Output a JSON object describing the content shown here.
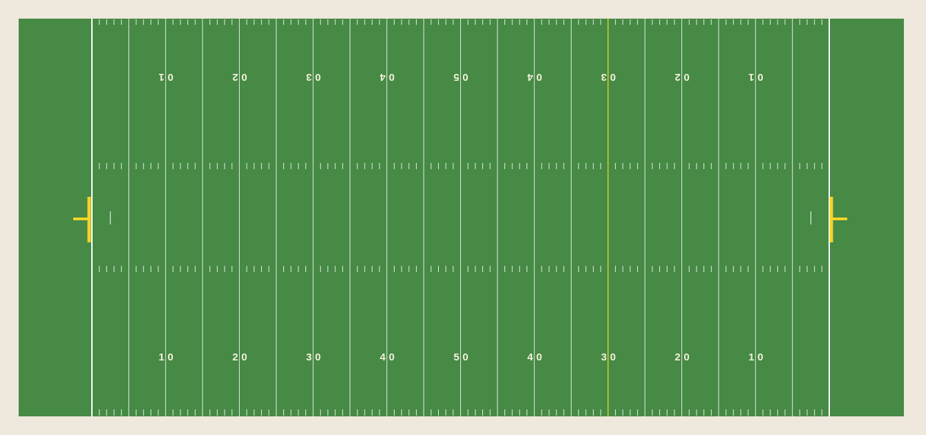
{
  "colors": {
    "background": "#efe8dd",
    "turf": "#468a45",
    "line": "#ffffff",
    "goalpost": "#f5d328",
    "first_down_line": "#c8cf2a",
    "number_bottom": "#f4f1dc",
    "number_top": "#f4f1dc"
  },
  "field": {
    "yard_numbers_bottom": [
      "10",
      "20",
      "30",
      "40",
      "50",
      "40",
      "30",
      "20",
      "10"
    ],
    "yard_numbers_top": [
      "10",
      "20",
      "30",
      "40",
      "50",
      "40",
      "30",
      "20",
      "10"
    ],
    "first_down_yard": 70,
    "total_yards": 100,
    "endzone_yards": 10
  },
  "icons": {
    "left_goalpost": "goalpost-icon",
    "right_goalpost": "goalpost-icon"
  }
}
